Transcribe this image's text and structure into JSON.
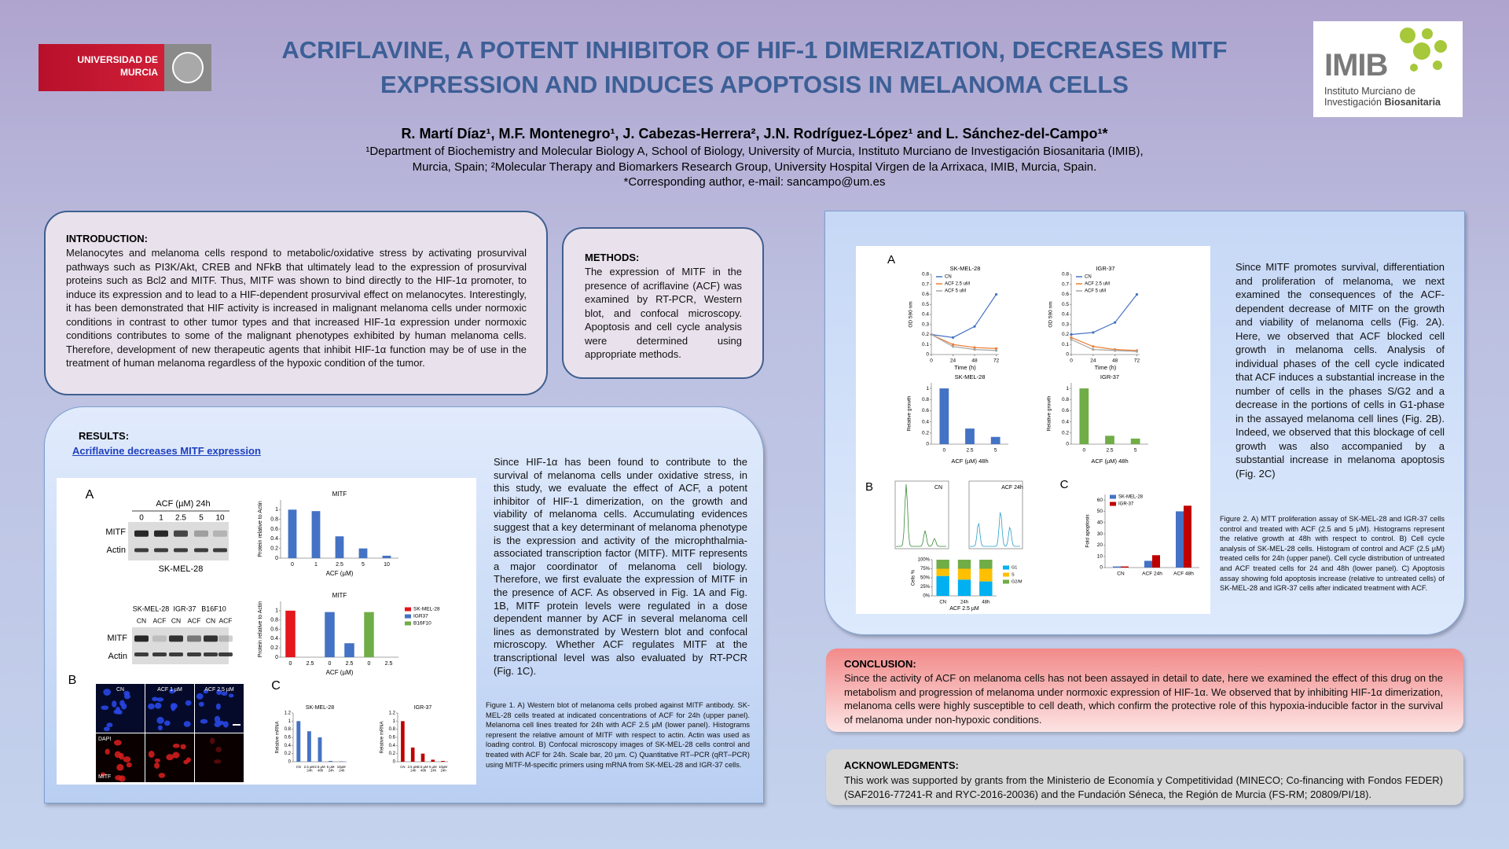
{
  "header": {
    "university_lines": [
      "UNIVERSIDAD DE",
      "MURCIA"
    ],
    "institute_logo": "IMIB",
    "institute_name_lines": [
      "Instituto Murciano de",
      "Investigación",
      "Biosanitaria"
    ],
    "title_lines": [
      "ACRIFLAVINE, A POTENT INHIBITOR OF HIF-1 DIMERIZATION, DECREASES MITF",
      "EXPRESSION AND INDUCES APOPTOSIS IN MELANOMA CELLS"
    ],
    "authors": "R. Martí Díaz¹, M.F. Montenegro¹, J. Cabezas-Herrera², J.N. Rodríguez-López¹ and L. Sánchez-del-Campo¹*",
    "affiliations": [
      "¹Department of Biochemistry and Molecular Biology A, School of Biology, University of Murcia, Instituto Murciano de Investigación Biosanitaria (IMIB),",
      "Murcia, Spain; ²Molecular Therapy and Biomarkers Research Group, University Hospital Virgen de la Arrixaca, IMIB, Murcia, Spain.",
      "*Corresponding author, e-mail: sancampo@um.es"
    ]
  },
  "introduction": {
    "heading": "INTRODUCTION:",
    "text": "Melanocytes and melanoma cells respond to metabolic/oxidative stress by activating prosurvival pathways such as PI3K/Akt, CREB and NFkB that ultimately lead to the expression of prosurvival proteins such as Bcl2 and MITF. Thus, MITF was shown to bind directly to the HIF-1α promoter, to induce its expression and to lead to a HIF-dependent prosurvival effect on melanocytes. Interestingly, it has been demonstrated that HIF activity is increased in malignant melanoma cells under normoxic conditions in contrast to other tumor types and that increased HIF-1α expression under normoxic conditions contributes to some of the malignant phenotypes exhibited by human melanoma cells. Therefore, development of new therapeutic agents that inhibit HIF-1α function may be of use in the treatment of human melanoma regardless of the hypoxic condition of the tumor."
  },
  "methods": {
    "heading": "METHODS:",
    "text": "The expression of MITF in the presence of acriflavine (ACF) was examined by RT-PCR, Western blot, and confocal microscopy. Apoptosis and cell cycle analysis were determined using appropriate methods."
  },
  "results": {
    "heading": "RESULTS:",
    "subheading": "Acriflavine decreases MITF expression",
    "text": "Since HIF-1α has been found to contribute to the survival of melanoma cells under oxidative stress, in this study, we evaluate the effect of ACF, a potent inhibitor of HIF-1 dimerization, on the growth and viability of melanoma cells. Accumulating evidences suggest that a key determinant of melanoma phenotype is the expression and activity of the microphthalmia-associated transcription factor (MITF). MITF represents a major coordinator of melanoma cell biology. Therefore, we first evaluate the expression of MITF in the presence of ACF. As observed in Fig. 1A and Fig. 1B, MITF protein levels were regulated in a dose dependent manner by ACF in several melanoma cell lines as demonstrated by Western blot and confocal microscopy. Whether ACF regulates MITF at the transcriptional level was also evaluated by RT-PCR (Fig. 1C).",
    "figure_caption": "Figure 1. A) Western blot of melanoma cells probed against MITF antibody. SK-MEL-28 cells treated at indicated concentrations of ACF for 24h (upper panel). Melanoma cell lines treated for 24h with ACF 2.5 µM (lower panel). Histograms represent the relative amount of MITF with respect to actin. Actin was used as loading control. B) Confocal microscopy images of SK-MEL-28 cells control and treated with ACF for 24h. Scale bar, 20 µm. C) Quantitative RT–PCR (qRT–PCR) using MITF-M-specific primers using mRNA from SK-MEL-28 and IGR-37 cells."
  },
  "figure1": {
    "panels": [
      "A",
      "B",
      "C"
    ],
    "blot_top": {
      "treatment": "ACF (µM) 24h",
      "lanes": [
        "0",
        "1",
        "2.5",
        "5",
        "10"
      ],
      "rows": [
        "MITF",
        "Actin"
      ],
      "cell_line": "SK-MEL-28"
    },
    "blot_bottom": {
      "cell_lines": [
        "SK-MEL-28",
        "IGR-37",
        "B16F10"
      ],
      "lanes": [
        "CN",
        "ACF",
        "CN",
        "ACF",
        "CN",
        "ACF"
      ],
      "rows": [
        "MITF",
        "Actin"
      ]
    },
    "microscopy": {
      "columns": [
        "CN",
        "ACF 1 µM",
        "ACF 2,5 µM"
      ],
      "rows": [
        "DAPI",
        "MITF"
      ]
    },
    "charts": [
      {
        "type": "bar",
        "title": "MITF",
        "ylabel": "Protein relative to Actin",
        "xlabel": "ACF (µM)",
        "categories": [
          "0",
          "1",
          "2.5",
          "5",
          "10"
        ],
        "values": [
          1,
          0.97,
          0.45,
          0.2,
          0.05
        ],
        "color": "#4472c4",
        "ylim": [
          0,
          1.2
        ],
        "yticks": [
          0,
          0.2,
          0.4,
          0.6,
          0.8,
          1
        ]
      },
      {
        "type": "bar",
        "title": "MITF",
        "ylabel": "Protein relative to Actin",
        "xlabel": "ACF (µM)",
        "categories": [
          "0",
          "2.5",
          "0",
          "2.5",
          "0",
          "2.5"
        ],
        "series": [
          {
            "name": "SK-MEL-28",
            "color": "#e3171c",
            "values": [
              1,
              0,
              null,
              null,
              null,
              null
            ]
          },
          {
            "name": "IGR37",
            "color": "#4472c4",
            "values": [
              null,
              null,
              0.97,
              0.3,
              null,
              null
            ]
          },
          {
            "name": "B16F10",
            "color": "#70ad47",
            "values": [
              null,
              null,
              null,
              null,
              0.97,
              0
            ]
          }
        ],
        "legend": "right",
        "ylim": [
          0,
          1.2
        ],
        "yticks": [
          0,
          0.2,
          0.4,
          0.6,
          0.8,
          1
        ]
      },
      {
        "type": "bar",
        "title": "SK-MEL-28",
        "ylabel": "Relative mRNA",
        "categories": [
          "CN",
          "2.5 µM 24h",
          "2.5 µM 48h",
          "5 µM 24h",
          "10µM 24h"
        ],
        "values": [
          1,
          0.75,
          0.6,
          0.02,
          0.01
        ],
        "color": "#4472c4",
        "ylim": [
          0,
          1.2
        ],
        "yticks": [
          0,
          0.2,
          0.4,
          0.6,
          0.8,
          1,
          1.2
        ]
      },
      {
        "type": "bar",
        "title": "IGR-37",
        "ylabel": "Relative mRNA",
        "categories": [
          "CN",
          "2.5 µM 24h",
          "2.5 µM 48h",
          "5 µM 24h",
          "10µM 24h"
        ],
        "values": [
          1,
          0.35,
          0.2,
          0.05,
          0.02
        ],
        "color": "#c00000",
        "ylim": [
          0,
          1.2
        ],
        "yticks": [
          0,
          0.2,
          0.4,
          0.6,
          0.8,
          1,
          1.2
        ]
      }
    ]
  },
  "discussion": {
    "text": "Since MITF promotes survival, differentiation and proliferation of melanoma, we next examined the consequences of the ACF-dependent decrease of MITF on the growth and viability of melanoma cells (Fig. 2A). Here, we observed that ACF blocked cell growth in melanoma cells. Analysis of individual phases of the cell cycle indicated that ACF induces a substantial increase in the number of cells in the phases S/G2 and a decrease in the portions of cells in G1-phase in the assayed melanoma cell lines (Fig. 2B). Indeed, we observed that this blockage of cell growth was also accompanied by a substantial increase in melanoma apoptosis (Fig. 2C)",
    "figure_caption": "Figure 2. A) MTT proliferation assay of SK-MEL-28 and IGR-37 cells control and treated with ACF (2.5 and 5 µM). Histograms represent the relative growth at 48h with respect to control. B) Cell cycle analysis of SK-MEL-28 cells. Histogram of control and ACF (2.5 µM) treated cells for 24h (upper panel). Cell cycle distribution of untreated and ACF treated cells for 24 and 48h (lower panel). C) Apoptosis assay showing fold apoptosis increase (relative to untreated cells) of SK-MEL-28 and IGR-37 cells after indicated treatment with ACF."
  },
  "figure2": {
    "panels": [
      "A",
      "B",
      "C"
    ],
    "histograms": [
      "CN",
      "ACF 24h"
    ],
    "charts": [
      {
        "type": "line",
        "title": "SK-MEL-28",
        "ylabel": "OD 590 nm",
        "xlabel": "Time (h)",
        "x": [
          0,
          24,
          48,
          72
        ],
        "xlim": [
          0,
          75
        ],
        "xticks": [
          0,
          24,
          48,
          72
        ],
        "ylim": [
          0,
          0.8
        ],
        "yticks": [
          0,
          0.1,
          0.2,
          0.3,
          0.4,
          0.5,
          0.6,
          0.7,
          0.8
        ],
        "legend": "upper left",
        "series": [
          {
            "name": "CN",
            "color": "#4472c4",
            "values": [
              0.2,
              0.17,
              0.28,
              0.6
            ]
          },
          {
            "name": "ACF 2.5 uM",
            "color": "#ed7d31",
            "values": [
              0.2,
              0.1,
              0.07,
              0.06
            ]
          },
          {
            "name": "ACF 5 uM",
            "color": "#a5a5a5",
            "values": [
              0.2,
              0.08,
              0.05,
              0.04
            ]
          }
        ]
      },
      {
        "type": "line",
        "title": "IGR-37",
        "ylabel": "OD 590 nm",
        "xlabel": "Time (h)",
        "x": [
          0,
          24,
          48,
          72
        ],
        "xlim": [
          0,
          75
        ],
        "xticks": [
          0,
          24,
          48,
          72
        ],
        "ylim": [
          0,
          0.8
        ],
        "yticks": [
          0,
          0.1,
          0.2,
          0.3,
          0.4,
          0.5,
          0.6,
          0.7,
          0.8
        ],
        "legend": "upper left",
        "series": [
          {
            "name": "CN",
            "color": "#4472c4",
            "values": [
              0.2,
              0.22,
              0.32,
              0.6
            ]
          },
          {
            "name": "ACF 2.5 uM",
            "color": "#ed7d31",
            "values": [
              0.17,
              0.08,
              0.05,
              0.04
            ]
          },
          {
            "name": "ACF 5 uM",
            "color": "#a5a5a5",
            "values": [
              0.15,
              0.05,
              0.04,
              0.03
            ]
          }
        ]
      },
      {
        "type": "bar",
        "title": "SK-MEL-28",
        "ylabel": "Relative growth",
        "xlabel": "ACF (µM) 48h",
        "categories": [
          "0",
          "2.5",
          "5"
        ],
        "values": [
          1,
          0.28,
          0.13
        ],
        "color": "#4472c4",
        "ylim": [
          0,
          1.1
        ],
        "yticks": [
          0,
          0.2,
          0.4,
          0.6,
          0.8,
          1
        ]
      },
      {
        "type": "bar",
        "title": "IGR-37",
        "ylabel": "Relative growth",
        "xlabel": "ACF (µM) 48h",
        "categories": [
          "0",
          "2.5",
          "5"
        ],
        "values": [
          1,
          0.15,
          0.1
        ],
        "color": "#70ad47",
        "ylim": [
          0,
          1.1
        ],
        "yticks": [
          0,
          0.2,
          0.4,
          0.6,
          0.8,
          1
        ]
      },
      {
        "type": "bar",
        "stacked": true,
        "ylabel": "Cells %",
        "xlabel": "ACF 2.5 µM",
        "categories": [
          "CN",
          "24h",
          "48h"
        ],
        "legend": "right",
        "series": [
          {
            "name": "G1",
            "color": "#00b0f0",
            "values": [
              55,
              45,
              40
            ]
          },
          {
            "name": "S",
            "color": "#ffc000",
            "values": [
              20,
              30,
              35
            ]
          },
          {
            "name": "G2/M",
            "color": "#70ad47",
            "values": [
              25,
              25,
              25
            ]
          }
        ],
        "ylim": [
          0,
          100
        ],
        "yticks": [
          {
            "value": 0,
            "label": "0%"
          },
          {
            "value": 25,
            "label": "25%"
          },
          {
            "value": 50,
            "label": "50%"
          },
          {
            "value": 75,
            "label": "75%"
          },
          {
            "value": 100,
            "label": "100%"
          }
        ]
      },
      {
        "type": "bar",
        "ylabel": "Fold apoptosis",
        "categories": [
          "CN",
          "ACF 24h",
          "ACF 48h"
        ],
        "legend": "upper left",
        "series": [
          {
            "name": "SK-MEL-28",
            "color": "#4472c4",
            "values": [
              1,
              6,
              50
            ]
          },
          {
            "name": "IGR-37",
            "color": "#c00000",
            "values": [
              1,
              11,
              55
            ]
          }
        ],
        "ylim": [
          0,
          65
        ],
        "yticks": [
          0,
          10,
          20,
          30,
          40,
          50,
          60
        ]
      }
    ]
  },
  "conclusion": {
    "heading": "CONCLUSION:",
    "text": "Since the activity of ACF on melanoma cells has not been assayed in detail to date, here we examined the effect of this drug on the metabolism and progression of melanoma under normoxic expression of HIF-1α. We observed that by inhibiting HIF-1α dimerization, melanoma cells were highly susceptible to cell death, which confirm the protective role of this hypoxia-inducible factor in the survival of melanoma under non-hypoxic conditions."
  },
  "acknowledgments": {
    "heading": "ACKNOWLEDGMENTS:",
    "text": "This work was supported by grants from the Ministerio de Economía y Competitividad (MINECO; Co-financing with Fondos FEDER) (SAF2016-77241-R and RYC-2016-20036) and the Fundación Séneca, the Región de Murcia (FS-RM; 20809/PI/18)."
  }
}
